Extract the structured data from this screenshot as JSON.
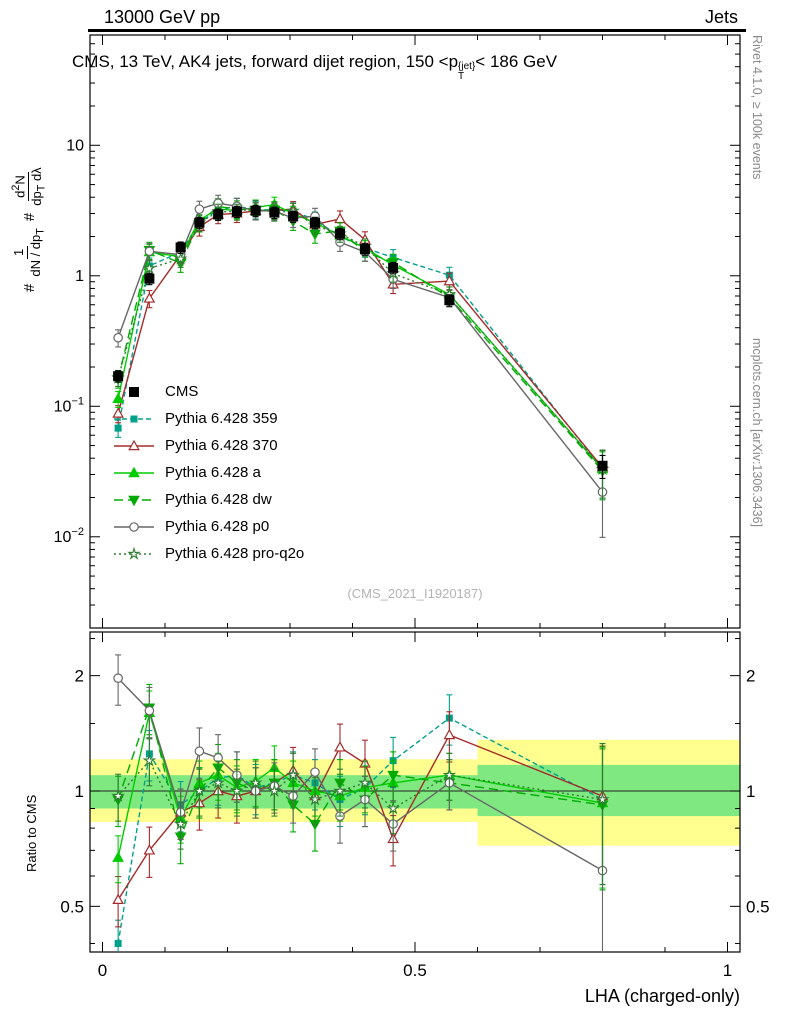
{
  "header": {
    "left": "13000 GeV pp",
    "right": "Jets"
  },
  "side_labels": {
    "rivet": "Rivet 4.1.0, ≥ 100k events",
    "mcplots": "mcplots.cern.ch [arXiv:1306.3436]"
  },
  "watermark": "(CMS_2021_I1920187)",
  "chart_data": {
    "type": "line",
    "title_parts": {
      "part1": "CMS, 13 TeV, AK4 jets, forward dijet region, 150 <p",
      "p_sup": "{jet}",
      "p_sub": "T",
      "part2": "< 186 GeV"
    },
    "xlabel": "LHA (charged-only)",
    "ratio_ylabel": "Ratio to CMS",
    "ylabel_parts": {
      "hash1": "#",
      "f1num": "1",
      "f1den_a": "dN / dp",
      "f1den_sub": "T",
      "hash2": "#",
      "f2num_a": "d",
      "f2num_sup": "2",
      "f2num_b": "N",
      "f2den_a": "dp",
      "f2den_sub": "T",
      "f2den_b": " dλ"
    },
    "x": [
      0.025,
      0.075,
      0.125,
      0.155,
      0.185,
      0.215,
      0.245,
      0.275,
      0.305,
      0.34,
      0.38,
      0.42,
      0.465,
      0.555,
      0.8
    ],
    "series": [
      {
        "name": "CMS",
        "color": "#000000",
        "line": "none",
        "marker": "square",
        "marker_filled": true,
        "rel_err": 0.1,
        "rel_err_last": 0.2,
        "values": [
          0.17,
          0.95,
          1.65,
          2.55,
          2.95,
          3.1,
          3.15,
          3.05,
          2.85,
          2.55,
          2.1,
          1.6,
          1.15,
          0.65,
          0.035
        ]
      },
      {
        "name": "Pythia 6.428 359",
        "color": "#00a08a",
        "line": "dashed_small",
        "marker": "square_small",
        "marker_filled": true,
        "rel_err": 0.15,
        "rel_err_last": 0.4,
        "values": [
          0.068,
          1.19,
          1.52,
          2.55,
          3.19,
          3.41,
          3.21,
          3.2,
          3.14,
          2.68,
          2.0,
          1.63,
          1.38,
          1.01,
          0.033
        ],
        "ratio": [
          0.4,
          1.25,
          0.92,
          1.0,
          1.08,
          1.1,
          1.02,
          1.05,
          1.1,
          1.05,
          0.95,
          1.02,
          1.2,
          1.55,
          0.95
        ]
      },
      {
        "name": "Pythia 6.428 370",
        "color": "#a52a2a",
        "line": "solid",
        "marker": "triangle_up",
        "marker_filled": false,
        "rel_err": 0.15,
        "rel_err_last": 0.35,
        "values": [
          0.088,
          0.67,
          1.45,
          2.37,
          2.95,
          3.01,
          3.15,
          3.2,
          3.22,
          2.47,
          2.73,
          1.89,
          0.86,
          0.91,
          0.034
        ],
        "ratio": [
          0.52,
          0.7,
          0.88,
          0.93,
          1.0,
          0.97,
          1.0,
          1.05,
          1.13,
          0.97,
          1.3,
          1.18,
          0.75,
          1.4,
          0.97
        ]
      },
      {
        "name": "Pythia 6.428 a",
        "color": "#00cc00",
        "line": "solid",
        "marker": "triangle_up",
        "marker_filled": true,
        "rel_err": 0.14,
        "rel_err_last": 0.4,
        "values": [
          0.114,
          1.52,
          1.4,
          2.68,
          3.25,
          3.16,
          3.34,
          3.51,
          2.99,
          2.55,
          2.04,
          1.63,
          1.21,
          0.72,
          0.033
        ],
        "ratio": [
          0.67,
          1.6,
          0.85,
          1.05,
          1.1,
          1.02,
          1.06,
          1.15,
          1.05,
          1.0,
          0.97,
          1.02,
          1.05,
          1.1,
          0.93
        ]
      },
      {
        "name": "Pythia 6.428 dw",
        "color": "#00aa00",
        "line": "dashed",
        "marker": "triangle_down",
        "marker_filled": true,
        "rel_err": 0.15,
        "rel_err_last": 0.4,
        "values": [
          0.162,
          1.57,
          1.25,
          2.55,
          3.39,
          3.26,
          3.15,
          3.2,
          2.62,
          2.09,
          2.21,
          1.52,
          1.27,
          0.68,
          0.032
        ],
        "ratio": [
          0.95,
          1.65,
          0.76,
          1.0,
          1.15,
          1.05,
          1.0,
          1.05,
          0.92,
          0.82,
          1.05,
          0.95,
          1.1,
          1.05,
          0.92
        ]
      },
      {
        "name": "Pythia 6.428 p0",
        "color": "#666666",
        "line": "solid",
        "marker": "circle",
        "marker_filled": false,
        "rel_err": 0.15,
        "rel_err_last": 0.55,
        "values": [
          0.335,
          1.54,
          1.45,
          3.24,
          3.6,
          3.41,
          3.15,
          3.14,
          2.76,
          2.86,
          1.81,
          1.52,
          0.94,
          0.68,
          0.022
        ],
        "ratio": [
          1.97,
          1.62,
          0.88,
          1.27,
          1.22,
          1.1,
          1.0,
          1.03,
          0.97,
          1.12,
          0.86,
          0.95,
          0.82,
          1.05,
          0.62
        ]
      },
      {
        "name": "Pythia 6.428 pro-q2o",
        "color": "#2e7d32",
        "line": "dotted",
        "marker": "star",
        "marker_filled": false,
        "rel_err": 0.14,
        "rel_err_last": 0.4,
        "values": [
          0.165,
          1.14,
          1.35,
          2.55,
          3.1,
          3.1,
          3.31,
          3.05,
          3.14,
          2.42,
          2.1,
          1.68,
          1.04,
          0.72,
          0.033
        ],
        "ratio": [
          0.97,
          1.2,
          0.82,
          1.0,
          1.05,
          1.0,
          1.05,
          1.0,
          1.1,
          0.95,
          1.0,
          1.05,
          0.9,
          1.1,
          0.95
        ]
      }
    ],
    "ratio_bands": {
      "yellow": {
        "color": "#ffff8f",
        "segments": [
          {
            "x0": -0.02,
            "x1": 0.6,
            "lo": 0.83,
            "hi": 1.21
          },
          {
            "x0": 0.6,
            "x1": 1.02,
            "lo": 0.72,
            "hi": 1.36
          }
        ]
      },
      "green": {
        "color": "#80e880",
        "segments": [
          {
            "x0": -0.02,
            "x1": 0.6,
            "lo": 0.9,
            "hi": 1.1
          },
          {
            "x0": 0.6,
            "x1": 1.02,
            "lo": 0.86,
            "hi": 1.17
          }
        ]
      },
      "center_line": 1
    },
    "axes": {
      "x": {
        "lim": [
          -0.02,
          1.02
        ],
        "major": [
          0,
          0.5,
          1
        ],
        "labels": [
          "0",
          "0.5",
          "1"
        ],
        "minor_step": 0.1
      },
      "y_main": {
        "scale": "log",
        "lim": [
          0.002,
          70
        ],
        "ticks": [
          {
            "v": 10,
            "t": "10"
          },
          {
            "v": 1,
            "t": "1"
          },
          {
            "v": 0.1,
            "t": "10",
            "e": "−1"
          },
          {
            "v": 0.01,
            "t": "10",
            "e": "−2"
          }
        ]
      },
      "y_ratio": {
        "scale": "log",
        "lim": [
          0.38,
          2.6
        ],
        "ticks": [
          {
            "v": 0.5,
            "t": "0.5"
          },
          {
            "v": 1,
            "t": "1"
          },
          {
            "v": 2,
            "t": "2"
          }
        ],
        "minor": [
          0.4,
          0.6,
          0.7,
          0.8,
          0.9,
          1.5,
          2.5
        ]
      }
    }
  }
}
